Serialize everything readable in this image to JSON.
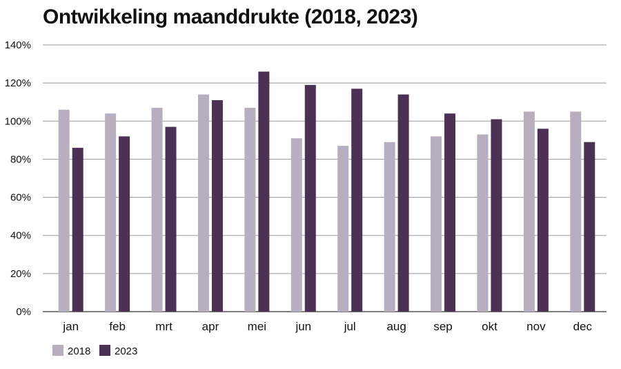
{
  "chart_data": {
    "type": "bar",
    "title": "Ontwikkeling maanddrukte (2018, 2023)",
    "categories": [
      "jan",
      "feb",
      "mrt",
      "apr",
      "mei",
      "jun",
      "jul",
      "aug",
      "sep",
      "okt",
      "nov",
      "dec"
    ],
    "series": [
      {
        "name": "2018",
        "color": "#b7afbf",
        "values": [
          106,
          104,
          107,
          114,
          107,
          91,
          87,
          89,
          92,
          93,
          105,
          105
        ]
      },
      {
        "name": "2023",
        "color": "#4b3254",
        "values": [
          86,
          92,
          97,
          111,
          126,
          119,
          117,
          114,
          104,
          101,
          96,
          89
        ]
      }
    ],
    "ylim": [
      0,
      140
    ],
    "yticks": [
      "0%",
      "20%",
      "40%",
      "60%",
      "80%",
      "100%",
      "120%",
      "140%"
    ],
    "grid": true,
    "legend": "bottom-left",
    "xlabel": "",
    "ylabel": ""
  }
}
